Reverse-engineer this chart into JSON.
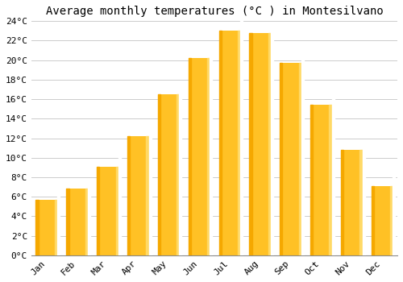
{
  "title": "Average monthly temperatures (°C ) in Montesilvano",
  "months": [
    "Jan",
    "Feb",
    "Mar",
    "Apr",
    "May",
    "Jun",
    "Jul",
    "Aug",
    "Sep",
    "Oct",
    "Nov",
    "Dec"
  ],
  "values": [
    5.7,
    6.8,
    9.1,
    12.2,
    16.5,
    20.2,
    23.0,
    22.8,
    19.7,
    15.4,
    10.8,
    7.1
  ],
  "bar_color_main": "#FFC125",
  "bar_color_left": "#F5A800",
  "bar_color_right": "#FFD966",
  "ylim": [
    0,
    24
  ],
  "yticks": [
    0,
    2,
    4,
    6,
    8,
    10,
    12,
    14,
    16,
    18,
    20,
    22,
    24
  ],
  "ytick_labels": [
    "0°C",
    "2°C",
    "4°C",
    "6°C",
    "8°C",
    "10°C",
    "12°C",
    "14°C",
    "16°C",
    "18°C",
    "20°C",
    "22°C",
    "24°C"
  ],
  "background_color": "#ffffff",
  "grid_color": "#cccccc",
  "title_fontsize": 10,
  "tick_fontsize": 8,
  "font_family": "monospace",
  "bar_width": 0.7
}
